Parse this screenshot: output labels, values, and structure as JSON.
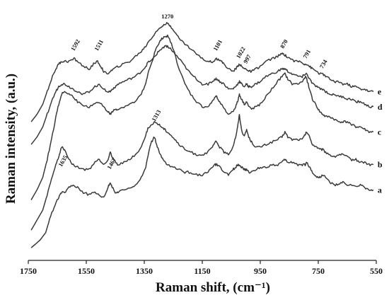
{
  "chart_data": {
    "type": "line",
    "title": "",
    "xlabel": "Raman shift, (cm⁻¹)",
    "ylabel": "Raman intensity, (a.u.)",
    "xlim": [
      1750,
      550
    ],
    "x_reversed": true,
    "ylim": [
      0,
      100
    ],
    "y_ticks_shown": false,
    "grid": false,
    "legend": "none",
    "x_ticks": [
      1750,
      1550,
      1350,
      1150,
      950,
      750,
      550
    ],
    "x_tick_labels": [
      "1750",
      "1550",
      "1350",
      "1150",
      "950",
      "750",
      "550"
    ],
    "peak_labels": [
      {
        "text": "1592",
        "x": 1592,
        "y": 83
      },
      {
        "text": "1511",
        "x": 1511,
        "y": 83
      },
      {
        "text": "1270",
        "x": 1270,
        "y": 96
      },
      {
        "text": "1101",
        "x": 1101,
        "y": 83
      },
      {
        "text": "1022",
        "x": 1022,
        "y": 80
      },
      {
        "text": "997",
        "x": 997,
        "y": 78
      },
      {
        "text": "870",
        "x": 870,
        "y": 84
      },
      {
        "text": "791",
        "x": 791,
        "y": 80
      },
      {
        "text": "734",
        "x": 734,
        "y": 76
      },
      {
        "text": "1313",
        "x": 1313,
        "y": 55
      },
      {
        "text": "1635",
        "x": 1635,
        "y": 37
      },
      {
        "text": "1467",
        "x": 1467,
        "y": 36
      }
    ],
    "series": [
      {
        "name": "a",
        "x": [
          1740,
          1710,
          1690,
          1680,
          1665,
          1650,
          1640,
          1635,
          1625,
          1610,
          1595,
          1580,
          1560,
          1540,
          1520,
          1505,
          1490,
          1475,
          1467,
          1460,
          1450,
          1440,
          1420,
          1400,
          1380,
          1360,
          1345,
          1335,
          1325,
          1315,
          1305,
          1295,
          1285,
          1270,
          1250,
          1230,
          1210,
          1190,
          1170,
          1150,
          1130,
          1115,
          1105,
          1100,
          1090,
          1075,
          1060,
          1045,
          1035,
          1028,
          1022,
          1015,
          1005,
          997,
          990,
          980,
          965,
          950,
          930,
          910,
          890,
          875,
          865,
          855,
          840,
          820,
          805,
          795,
          790,
          780,
          770,
          755,
          745,
          735,
          725,
          710,
          695,
          680,
          665,
          650,
          635,
          620,
          605,
          590,
          575,
          560
        ],
        "y": [
          5,
          8,
          11,
          15,
          20,
          24,
          26,
          27,
          27,
          29,
          30,
          29,
          27,
          26,
          27,
          26,
          25,
          29,
          31,
          29,
          27,
          27,
          28,
          29,
          30,
          33,
          37,
          43,
          47,
          49,
          45,
          42,
          40,
          38,
          37,
          36,
          35,
          35,
          34,
          34,
          35,
          37,
          38,
          38,
          37,
          35,
          34,
          36,
          37,
          38,
          38,
          37,
          36,
          36,
          35,
          35,
          36,
          37,
          37,
          38,
          38,
          39,
          40,
          39,
          39,
          38,
          38,
          38,
          39,
          37,
          35,
          33,
          33,
          34,
          33,
          31,
          30,
          30,
          31,
          30,
          30,
          29,
          30,
          29,
          28,
          28
        ]
      },
      {
        "name": "b",
        "x": [
          1740,
          1720,
          1700,
          1685,
          1670,
          1655,
          1645,
          1635,
          1625,
          1610,
          1595,
          1580,
          1560,
          1540,
          1520,
          1505,
          1490,
          1475,
          1467,
          1460,
          1450,
          1440,
          1420,
          1400,
          1380,
          1360,
          1345,
          1335,
          1320,
          1313,
          1300,
          1290,
          1280,
          1270,
          1260,
          1245,
          1230,
          1210,
          1190,
          1170,
          1150,
          1130,
          1115,
          1105,
          1100,
          1090,
          1075,
          1060,
          1045,
          1035,
          1028,
          1022,
          1015,
          1005,
          997,
          990,
          980,
          965,
          950,
          930,
          910,
          890,
          875,
          865,
          855,
          840,
          820,
          805,
          795,
          790,
          780,
          770,
          755,
          745,
          735,
          725,
          710,
          695,
          680,
          665,
          650,
          635,
          620,
          605,
          590,
          575,
          560
        ],
        "y": [
          12,
          16,
          20,
          26,
          32,
          38,
          41,
          45,
          44,
          40,
          38,
          37,
          36,
          36,
          39,
          40,
          38,
          40,
          43,
          41,
          39,
          38,
          39,
          40,
          42,
          45,
          50,
          53,
          54,
          55,
          54,
          53,
          52,
          51,
          50,
          48,
          46,
          44,
          43,
          42,
          42,
          43,
          45,
          47,
          47,
          45,
          43,
          42,
          45,
          49,
          53,
          58,
          52,
          49,
          52,
          49,
          47,
          45,
          45,
          46,
          47,
          48,
          49,
          51,
          49,
          48,
          48,
          48,
          50,
          51,
          49,
          46,
          45,
          44,
          44,
          43,
          42,
          41,
          42,
          42,
          41,
          40,
          40,
          39,
          39,
          38,
          38
        ]
      },
      {
        "name": "c",
        "x": [
          1740,
          1720,
          1700,
          1685,
          1670,
          1655,
          1645,
          1635,
          1625,
          1610,
          1595,
          1580,
          1560,
          1540,
          1520,
          1505,
          1490,
          1475,
          1467,
          1460,
          1450,
          1440,
          1420,
          1400,
          1380,
          1360,
          1345,
          1335,
          1320,
          1313,
          1300,
          1290,
          1280,
          1270,
          1260,
          1245,
          1230,
          1210,
          1190,
          1170,
          1150,
          1130,
          1115,
          1105,
          1100,
          1090,
          1075,
          1060,
          1045,
          1035,
          1028,
          1022,
          1015,
          1005,
          997,
          990,
          980,
          965,
          950,
          930,
          910,
          890,
          875,
          865,
          855,
          840,
          820,
          805,
          795,
          790,
          780,
          770,
          755,
          745,
          735,
          725,
          710,
          695,
          680,
          665,
          650,
          635,
          620,
          605,
          590,
          575,
          560
        ],
        "y": [
          24,
          28,
          33,
          40,
          48,
          57,
          62,
          66,
          67,
          66,
          65,
          63,
          61,
          61,
          62,
          63,
          61,
          59,
          58,
          59,
          60,
          60,
          61,
          62,
          63,
          66,
          70,
          75,
          80,
          83,
          86,
          88,
          89,
          89,
          87,
          82,
          76,
          70,
          66,
          63,
          61,
          61,
          63,
          65,
          65,
          63,
          60,
          58,
          59,
          61,
          63,
          66,
          64,
          62,
          63,
          61,
          60,
          61,
          62,
          65,
          68,
          71,
          73,
          74,
          72,
          70,
          70,
          71,
          73,
          72,
          68,
          64,
          61,
          59,
          58,
          57,
          57,
          56,
          55,
          55,
          55,
          54,
          53,
          53,
          52,
          51,
          51
        ]
      },
      {
        "name": "d",
        "x": [
          1740,
          1720,
          1700,
          1685,
          1670,
          1655,
          1645,
          1635,
          1625,
          1610,
          1595,
          1580,
          1560,
          1540,
          1520,
          1505,
          1490,
          1475,
          1467,
          1460,
          1450,
          1440,
          1420,
          1400,
          1380,
          1360,
          1345,
          1335,
          1320,
          1313,
          1300,
          1290,
          1280,
          1270,
          1260,
          1245,
          1230,
          1210,
          1190,
          1170,
          1150,
          1130,
          1115,
          1105,
          1100,
          1090,
          1075,
          1060,
          1045,
          1035,
          1028,
          1022,
          1015,
          1005,
          997,
          990,
          980,
          965,
          950,
          930,
          910,
          890,
          875,
          865,
          855,
          840,
          820,
          805,
          795,
          790,
          780,
          770,
          755,
          745,
          735,
          725,
          710,
          695,
          680,
          665,
          650,
          635,
          620,
          605,
          590,
          575,
          560
        ],
        "y": [
          46,
          49,
          53,
          58,
          63,
          67,
          69,
          70,
          70,
          69,
          68,
          67,
          66,
          67,
          69,
          70,
          68,
          67,
          67,
          68,
          69,
          70,
          71,
          72,
          73,
          75,
          77,
          79,
          80,
          81,
          83,
          84,
          85,
          85,
          84,
          82,
          80,
          77,
          74,
          72,
          70,
          70,
          71,
          72,
          72,
          71,
          70,
          68,
          68,
          69,
          70,
          71,
          70,
          69,
          70,
          69,
          69,
          70,
          71,
          73,
          74,
          75,
          76,
          76,
          75,
          74,
          73,
          73,
          74,
          74,
          72,
          70,
          69,
          68,
          68,
          67,
          66,
          66,
          65,
          65,
          64,
          64,
          63,
          63,
          62,
          61,
          61
        ]
      },
      {
        "name": "e",
        "x": [
          1740,
          1720,
          1700,
          1685,
          1670,
          1655,
          1645,
          1635,
          1625,
          1610,
          1592,
          1580,
          1560,
          1540,
          1525,
          1511,
          1500,
          1490,
          1480,
          1467,
          1455,
          1440,
          1420,
          1400,
          1380,
          1360,
          1345,
          1335,
          1320,
          1313,
          1300,
          1290,
          1280,
          1270,
          1260,
          1245,
          1230,
          1210,
          1190,
          1170,
          1150,
          1130,
          1115,
          1101,
          1095,
          1085,
          1075,
          1060,
          1045,
          1035,
          1028,
          1022,
          1015,
          1005,
          997,
          990,
          980,
          965,
          950,
          930,
          910,
          890,
          875,
          870,
          860,
          845,
          830,
          815,
          800,
          791,
          780,
          770,
          755,
          745,
          734,
          725,
          710,
          695,
          680,
          665,
          650,
          635,
          620,
          605,
          590,
          575,
          560
        ],
        "y": [
          55,
          58,
          62,
          67,
          72,
          76,
          78,
          79,
          79,
          79,
          80,
          79,
          77,
          76,
          78,
          79,
          77,
          75,
          74,
          75,
          76,
          77,
          78,
          79,
          81,
          83,
          85,
          87,
          89,
          90,
          92,
          93,
          94,
          94,
          93,
          91,
          88,
          86,
          84,
          82,
          80,
          79,
          79,
          80,
          80,
          79,
          78,
          76,
          75,
          76,
          77,
          78,
          77,
          76,
          76,
          75,
          75,
          76,
          77,
          79,
          80,
          81,
          82,
          82,
          81,
          80,
          79,
          79,
          78,
          78,
          77,
          76,
          75,
          74,
          74,
          73,
          72,
          71,
          71,
          70,
          70,
          69,
          69,
          68,
          68,
          67,
          67
        ]
      }
    ]
  }
}
